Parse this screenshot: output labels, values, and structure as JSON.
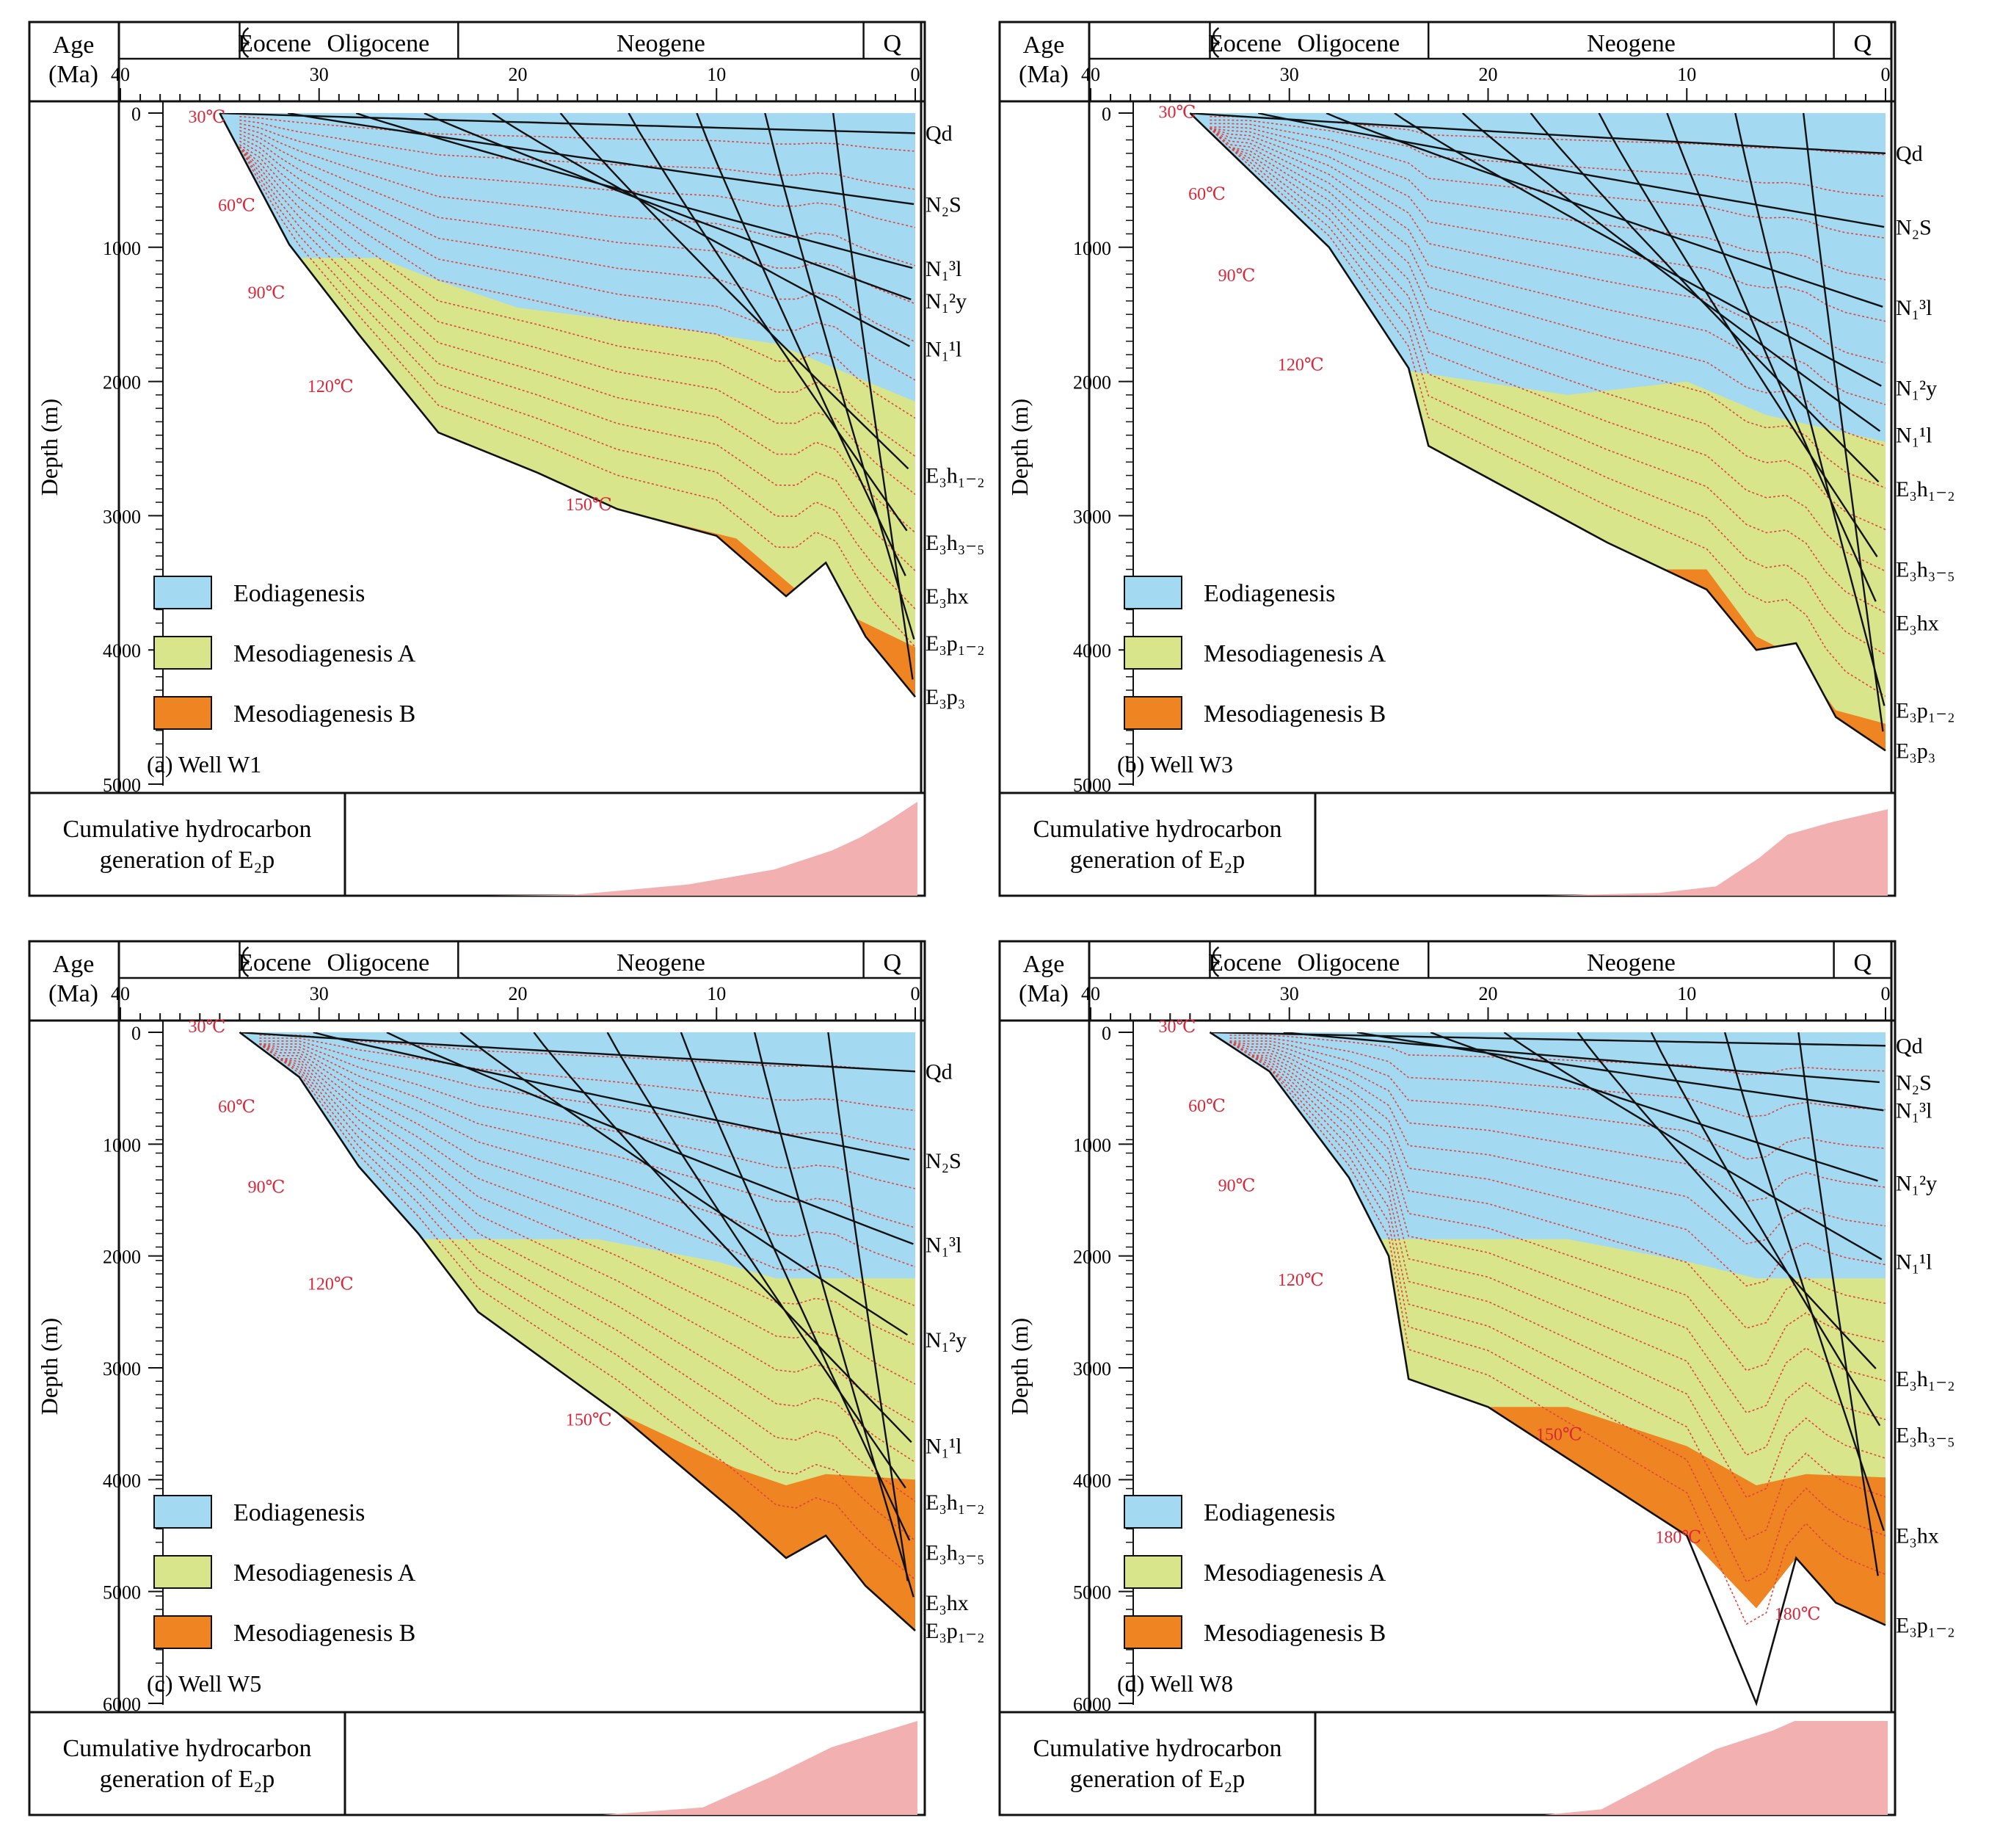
{
  "colors": {
    "eodiagenesis": "#a4d9f2",
    "mesodiagenesis_a": "#d9e58a",
    "mesodiagenesis_b": "#ef8422",
    "burial_line": "#111111",
    "isotherm": "#e0443c",
    "hydrocarbon": "#f2b0b0",
    "text_red": "#d8283a"
  },
  "shared_labels": {
    "age_title_1": "Age",
    "age_title_2": "(Ma)",
    "depth_title": "Depth (m)",
    "epochs": [
      "Eocene",
      "Oligocene",
      "Neogene",
      "Q"
    ],
    "age_ticks": [
      "40",
      "30",
      "20",
      "10",
      "0"
    ],
    "legend": [
      "Eodiagenesis",
      "Mesodiagenesis A",
      "Mesodiagenesis B"
    ],
    "hc_label_1": "Cumulative hydrocarbon",
    "hc_label_2": "generation of E₂p"
  },
  "chart_data": [
    {
      "type": "area",
      "title": "(a) Well W1",
      "x_label": "Age (Ma)",
      "y_label": "Depth (m)",
      "xlim": [
        40,
        0
      ],
      "ylim": [
        0,
        5000
      ],
      "depth_ticks": [
        "0",
        "1000",
        "2000",
        "3000",
        "4000",
        "5000"
      ],
      "formations": [
        "Qd",
        "N₂S",
        "N₁³l",
        "N₁²y",
        "N₁¹l",
        "E₃h₁₋₂",
        "E₃h₃₋₅",
        "E₃hx",
        "E₃p₁₋₂",
        "E₃p₃"
      ],
      "isotherms": [
        "30℃",
        "60℃",
        "90℃",
        "120℃",
        "150℃"
      ],
      "present_depths_m": [
        150,
        680,
        1160,
        1400,
        1760,
        2700,
        3200,
        3600,
        3950,
        4350
      ],
      "eodiagenesis_base_m": [
        [
          33,
          1080
        ],
        [
          27,
          1080
        ],
        [
          24,
          1250
        ],
        [
          20,
          1450
        ],
        [
          14,
          1560
        ],
        [
          7,
          1720
        ],
        [
          0,
          2150
        ]
      ],
      "mesodiagenesis_a_base_m": [
        [
          24,
          2380
        ],
        [
          15,
          2950
        ],
        [
          9,
          3170
        ],
        [
          6,
          3550
        ],
        [
          0,
          3980
        ]
      ],
      "basement_m": [
        [
          35,
          0
        ],
        [
          31.5,
          980
        ],
        [
          28,
          1650
        ],
        [
          24,
          2380
        ],
        [
          19,
          2680
        ],
        [
          15,
          2950
        ],
        [
          10,
          3150
        ],
        [
          6.5,
          3600
        ],
        [
          4.5,
          3350
        ],
        [
          2.5,
          3900
        ],
        [
          0,
          4350
        ]
      ],
      "hc_cumulative": [
        [
          40,
          0
        ],
        [
          30,
          0
        ],
        [
          24,
          0.01
        ],
        [
          16,
          0.12
        ],
        [
          10,
          0.28
        ],
        [
          6,
          0.48
        ],
        [
          4,
          0.62
        ],
        [
          2,
          0.8
        ],
        [
          0,
          1
        ]
      ]
    },
    {
      "type": "area",
      "title": "(b) Well W3",
      "x_label": "Age (Ma)",
      "y_label": "Depth (m)",
      "xlim": [
        40,
        0
      ],
      "ylim": [
        0,
        5000
      ],
      "depth_ticks": [
        "0",
        "1000",
        "2000",
        "3000",
        "4000",
        "5000"
      ],
      "formations": [
        "Qd",
        "N₂S",
        "N₁³l",
        "N₁²y",
        "N₁¹l",
        "E₃h₁₋₂",
        "E₃h₃₋₅",
        "E₃hx",
        "E₃p₁₋₂",
        "E₃p₃"
      ],
      "isotherms": [
        "30℃",
        "60℃",
        "90℃",
        "120℃"
      ],
      "present_depths_m": [
        300,
        850,
        1450,
        2050,
        2400,
        2800,
        3400,
        3800,
        4450,
        4750
      ],
      "eodiagenesis_base_m": [
        [
          25,
          1900
        ],
        [
          16,
          2100
        ],
        [
          10,
          2000
        ],
        [
          6,
          2250
        ],
        [
          0,
          2450
        ]
      ],
      "mesodiagenesis_a_base_m": [
        [
          9,
          3400
        ],
        [
          6.5,
          3900
        ],
        [
          4.5,
          4050
        ],
        [
          2.5,
          4450
        ],
        [
          0,
          4550
        ]
      ],
      "basement_m": [
        [
          35,
          0
        ],
        [
          28,
          1000
        ],
        [
          24,
          1900
        ],
        [
          23,
          2480
        ],
        [
          14,
          3200
        ],
        [
          9,
          3550
        ],
        [
          6.5,
          4000
        ],
        [
          4.5,
          3950
        ],
        [
          2.5,
          4500
        ],
        [
          0,
          4750
        ]
      ],
      "hc_cumulative": [
        [
          40,
          0
        ],
        [
          24,
          0
        ],
        [
          16,
          0.03
        ],
        [
          12,
          0.1
        ],
        [
          9,
          0.4
        ],
        [
          7,
          0.65
        ],
        [
          4,
          0.78
        ],
        [
          0,
          0.92
        ]
      ]
    },
    {
      "type": "area",
      "title": "(c) Well W5",
      "x_label": "Age (Ma)",
      "y_label": "Depth (m)",
      "xlim": [
        40,
        0
      ],
      "ylim": [
        0,
        6000
      ],
      "depth_ticks": [
        "0",
        "1000",
        "2000",
        "3000",
        "4000",
        "5000",
        "6000"
      ],
      "formations": [
        "Qd",
        "N₂S",
        "N₁³l",
        "N₁²y",
        "N₁¹l",
        "E₃h₁₋₂",
        "E₃h₃₋₅",
        "E₃hx",
        "E₃p₁₋₂"
      ],
      "isotherms": [
        "30℃",
        "60℃",
        "90℃",
        "120℃",
        "150℃"
      ],
      "present_depths_m": [
        350,
        1150,
        1900,
        2750,
        3700,
        4200,
        4650,
        5100,
        5350
      ],
      "eodiagenesis_base_m": [
        [
          25,
          1850
        ],
        [
          16,
          1850
        ],
        [
          10,
          2050
        ],
        [
          7,
          2200
        ],
        [
          0,
          2200
        ]
      ],
      "mesodiagenesis_a_base_m": [
        [
          15,
          3400
        ],
        [
          9,
          3900
        ],
        [
          6.5,
          4050
        ],
        [
          4.5,
          3950
        ],
        [
          0,
          4000
        ]
      ],
      "basement_m": [
        [
          34,
          0
        ],
        [
          31,
          400
        ],
        [
          28,
          1200
        ],
        [
          25,
          1800
        ],
        [
          22,
          2500
        ],
        [
          15,
          3400
        ],
        [
          9,
          4300
        ],
        [
          6.5,
          4700
        ],
        [
          4.5,
          4500
        ],
        [
          2.5,
          4950
        ],
        [
          0,
          5350
        ]
      ],
      "hc_cumulative": [
        [
          40,
          0
        ],
        [
          22,
          0
        ],
        [
          15,
          0.08
        ],
        [
          10,
          0.42
        ],
        [
          6,
          0.72
        ],
        [
          3,
          0.86
        ],
        [
          0,
          1
        ]
      ]
    },
    {
      "type": "area",
      "title": "(d) Well W8",
      "x_label": "Age (Ma)",
      "y_label": "Depth (m)",
      "xlim": [
        40,
        0
      ],
      "ylim": [
        0,
        6000
      ],
      "depth_ticks": [
        "0",
        "1000",
        "2000",
        "3000",
        "4000",
        "5000",
        "6000"
      ],
      "formations": [
        "Qd",
        "N₂S",
        "N₁³l",
        "N₁²y",
        "N₁¹l",
        "E₃h₁₋₂",
        "E₃h₃₋₅",
        "E₃hx",
        "E₃p₁₋₂"
      ],
      "isotherms": [
        "30℃",
        "60℃",
        "90℃",
        "120℃",
        "150℃",
        "180℃",
        "180℃"
      ],
      "present_depths_m": [
        120,
        450,
        700,
        1350,
        2050,
        3100,
        3600,
        4500,
        5300
      ],
      "eodiagenesis_base_m": [
        [
          25,
          1850
        ],
        [
          16,
          1850
        ],
        [
          10,
          2050
        ],
        [
          6.5,
          2200
        ],
        [
          0,
          2200
        ]
      ],
      "mesodiagenesis_a_base_m": [
        [
          20,
          3350
        ],
        [
          16,
          3350
        ],
        [
          10,
          3700
        ],
        [
          6.5,
          4050
        ],
        [
          4,
          3950
        ],
        [
          0,
          3980
        ]
      ],
      "basement_m": [
        [
          34,
          0
        ],
        [
          31,
          350
        ],
        [
          27,
          1300
        ],
        [
          25,
          2000
        ],
        [
          24,
          3100
        ],
        [
          20,
          3350
        ],
        [
          10,
          4500
        ],
        [
          6.5,
          6000
        ],
        [
          4.5,
          4700
        ],
        [
          2.5,
          5100
        ],
        [
          0,
          5300
        ]
      ],
      "hc_cumulative": [
        [
          40,
          0
        ],
        [
          24,
          0
        ],
        [
          20,
          0.06
        ],
        [
          16,
          0.38
        ],
        [
          12,
          0.7
        ],
        [
          8,
          0.9
        ],
        [
          6.5,
          1
        ],
        [
          0,
          1
        ]
      ]
    }
  ]
}
